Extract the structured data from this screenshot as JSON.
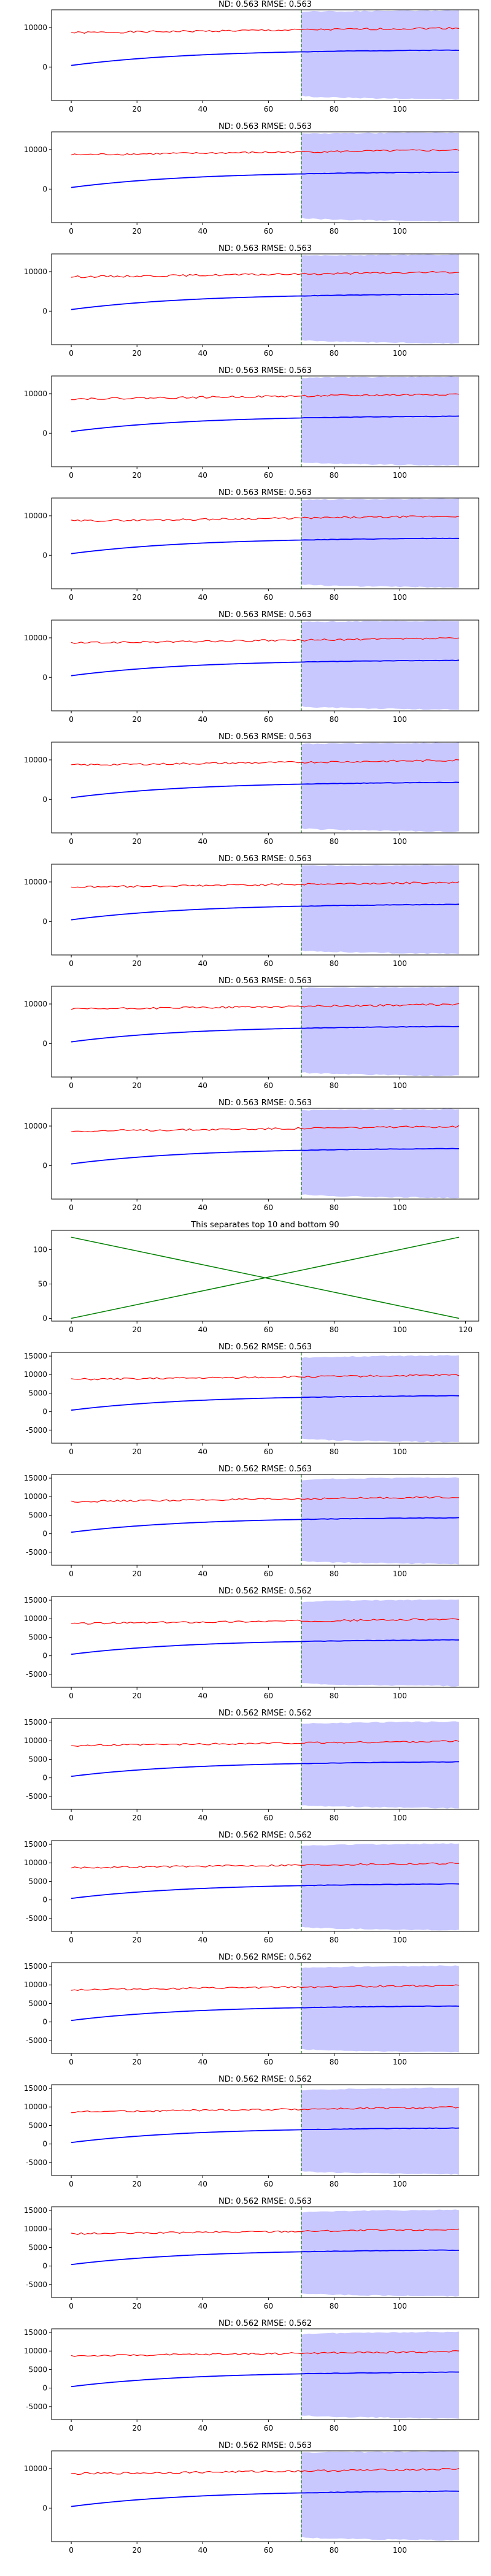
{
  "colors": {
    "actual": "#ff0000",
    "forecast": "#0000ff",
    "band": "#c8c8ff",
    "split_line": "#006400",
    "separator_lines": "#008000"
  },
  "chart_data": [
    {
      "type": "line",
      "title": "ND:  0.563 RMSE:  0.563",
      "x_ticks": [
        "0",
        "20",
        "40",
        "60",
        "80",
        "100"
      ],
      "y_ticks": [
        "0",
        "10000"
      ],
      "xlim": [
        -6,
        124
      ],
      "ylim": [
        -8500,
        14500
      ],
      "split_x": 70,
      "band": {
        "x": [
          70,
          118
        ],
        "lower_start": -7300,
        "lower_end": -8200,
        "upper_start": 14000,
        "upper_end": 14300
      },
      "series": [
        {
          "color": "red",
          "x_range": [
            0,
            118
          ],
          "start": 8700,
          "end": 9900
        },
        {
          "color": "blue",
          "x_range": [
            0,
            118
          ],
          "start": 400,
          "end": 4300
        }
      ]
    },
    {
      "type": "line",
      "title": "ND:  0.563 RMSE:  0.563",
      "x_ticks": [
        "0",
        "20",
        "40",
        "60",
        "80",
        "100"
      ],
      "y_ticks": [
        "0",
        "10000"
      ],
      "xlim": [
        -6,
        124
      ],
      "ylim": [
        -8500,
        14500
      ],
      "split_x": 70,
      "band": {
        "x": [
          70,
          118
        ],
        "lower_start": -7300,
        "lower_end": -8200,
        "upper_start": 14000,
        "upper_end": 14300
      },
      "series": [
        {
          "color": "red",
          "x_range": [
            0,
            118
          ],
          "start": 8700,
          "end": 9900
        },
        {
          "color": "blue",
          "x_range": [
            0,
            118
          ],
          "start": 400,
          "end": 4300
        }
      ]
    },
    {
      "type": "line",
      "title": "ND:  0.563 RMSE:  0.563",
      "x_ticks": [
        "0",
        "20",
        "40",
        "60",
        "80",
        "100"
      ],
      "y_ticks": [
        "0",
        "10000"
      ],
      "xlim": [
        -6,
        124
      ],
      "ylim": [
        -8500,
        14500
      ],
      "split_x": 70,
      "band": {
        "x": [
          70,
          118
        ],
        "lower_start": -7300,
        "lower_end": -8200,
        "upper_start": 14000,
        "upper_end": 14300
      },
      "series": [
        {
          "color": "red",
          "x_range": [
            0,
            118
          ],
          "start": 8700,
          "end": 9900
        },
        {
          "color": "blue",
          "x_range": [
            0,
            118
          ],
          "start": 400,
          "end": 4300
        }
      ]
    },
    {
      "type": "line",
      "title": "ND:  0.563 RMSE:  0.563",
      "x_ticks": [
        "0",
        "20",
        "40",
        "60",
        "80",
        "100"
      ],
      "y_ticks": [
        "0",
        "10000"
      ],
      "xlim": [
        -6,
        124
      ],
      "ylim": [
        -8500,
        14500
      ],
      "split_x": 70,
      "band": {
        "x": [
          70,
          118
        ],
        "lower_start": -7300,
        "lower_end": -8200,
        "upper_start": 14000,
        "upper_end": 14300
      },
      "series": [
        {
          "color": "red",
          "x_range": [
            0,
            118
          ],
          "start": 8700,
          "end": 9900
        },
        {
          "color": "blue",
          "x_range": [
            0,
            118
          ],
          "start": 400,
          "end": 4300
        }
      ]
    },
    {
      "type": "line",
      "title": "ND:  0.563 RMSE:  0.563",
      "x_ticks": [
        "0",
        "20",
        "40",
        "60",
        "80",
        "100"
      ],
      "y_ticks": [
        "0",
        "10000"
      ],
      "xlim": [
        -6,
        124
      ],
      "ylim": [
        -8500,
        14500
      ],
      "split_x": 70,
      "band": {
        "x": [
          70,
          118
        ],
        "lower_start": -7300,
        "lower_end": -8200,
        "upper_start": 14000,
        "upper_end": 14300
      },
      "series": [
        {
          "color": "red",
          "x_range": [
            0,
            118
          ],
          "start": 8700,
          "end": 9900
        },
        {
          "color": "blue",
          "x_range": [
            0,
            118
          ],
          "start": 400,
          "end": 4300
        }
      ]
    },
    {
      "type": "line",
      "title": "ND:  0.563 RMSE:  0.563",
      "x_ticks": [
        "0",
        "20",
        "40",
        "60",
        "80",
        "100"
      ],
      "y_ticks": [
        "0",
        "10000"
      ],
      "xlim": [
        -6,
        124
      ],
      "ylim": [
        -8500,
        14500
      ],
      "split_x": 70,
      "band": {
        "x": [
          70,
          118
        ],
        "lower_start": -7300,
        "lower_end": -8200,
        "upper_start": 14000,
        "upper_end": 14300
      },
      "series": [
        {
          "color": "red",
          "x_range": [
            0,
            118
          ],
          "start": 8700,
          "end": 9900
        },
        {
          "color": "blue",
          "x_range": [
            0,
            118
          ],
          "start": 400,
          "end": 4300
        }
      ]
    },
    {
      "type": "line",
      "title": "ND:  0.563 RMSE:  0.563",
      "x_ticks": [
        "0",
        "20",
        "40",
        "60",
        "80",
        "100"
      ],
      "y_ticks": [
        "0",
        "10000"
      ],
      "xlim": [
        -6,
        124
      ],
      "ylim": [
        -8500,
        14500
      ],
      "split_x": 70,
      "band": {
        "x": [
          70,
          118
        ],
        "lower_start": -7300,
        "lower_end": -8200,
        "upper_start": 14000,
        "upper_end": 14300
      },
      "series": [
        {
          "color": "red",
          "x_range": [
            0,
            118
          ],
          "start": 8700,
          "end": 9900
        },
        {
          "color": "blue",
          "x_range": [
            0,
            118
          ],
          "start": 400,
          "end": 4300
        }
      ]
    },
    {
      "type": "line",
      "title": "ND:  0.563 RMSE:  0.563",
      "x_ticks": [
        "0",
        "20",
        "40",
        "60",
        "80",
        "100"
      ],
      "y_ticks": [
        "0",
        "10000"
      ],
      "xlim": [
        -6,
        124
      ],
      "ylim": [
        -8500,
        14500
      ],
      "split_x": 70,
      "band": {
        "x": [
          70,
          118
        ],
        "lower_start": -7300,
        "lower_end": -8200,
        "upper_start": 14000,
        "upper_end": 14300
      },
      "series": [
        {
          "color": "red",
          "x_range": [
            0,
            118
          ],
          "start": 8700,
          "end": 9900
        },
        {
          "color": "blue",
          "x_range": [
            0,
            118
          ],
          "start": 400,
          "end": 4300
        }
      ]
    },
    {
      "type": "line",
      "title": "ND:  0.563 RMSE:  0.563",
      "x_ticks": [
        "0",
        "20",
        "40",
        "60",
        "80",
        "100"
      ],
      "y_ticks": [
        "0",
        "10000"
      ],
      "xlim": [
        -6,
        124
      ],
      "ylim": [
        -8500,
        14500
      ],
      "split_x": 70,
      "band": {
        "x": [
          70,
          118
        ],
        "lower_start": -7300,
        "lower_end": -8200,
        "upper_start": 14000,
        "upper_end": 14300
      },
      "series": [
        {
          "color": "red",
          "x_range": [
            0,
            118
          ],
          "start": 8700,
          "end": 9900
        },
        {
          "color": "blue",
          "x_range": [
            0,
            118
          ],
          "start": 400,
          "end": 4300
        }
      ]
    },
    {
      "type": "line",
      "title": "ND:  0.563 RMSE:  0.563",
      "x_ticks": [
        "0",
        "20",
        "40",
        "60",
        "80",
        "100"
      ],
      "y_ticks": [
        "0",
        "10000"
      ],
      "xlim": [
        -6,
        124
      ],
      "ylim": [
        -8500,
        14500
      ],
      "split_x": 70,
      "band": {
        "x": [
          70,
          118
        ],
        "lower_start": -7300,
        "lower_end": -8200,
        "upper_start": 14000,
        "upper_end": 14300
      },
      "series": [
        {
          "color": "red",
          "x_range": [
            0,
            118
          ],
          "start": 8700,
          "end": 9900
        },
        {
          "color": "blue",
          "x_range": [
            0,
            118
          ],
          "start": 400,
          "end": 4300
        }
      ]
    },
    {
      "type": "line",
      "title": "This separates top 10 and bottom 90",
      "x_ticks": [
        "0",
        "20",
        "40",
        "60",
        "80",
        "100",
        "120"
      ],
      "y_ticks": [
        "0",
        "50",
        "100"
      ],
      "xlim": [
        -6,
        124
      ],
      "ylim": [
        -4,
        128
      ],
      "series": [
        {
          "color": "green",
          "x": [
            0,
            118
          ],
          "y": [
            0,
            118
          ]
        },
        {
          "color": "green",
          "x": [
            0,
            118
          ],
          "y": [
            118,
            0
          ]
        }
      ]
    },
    {
      "type": "line",
      "title": "ND:  0.562 RMSE:  0.563",
      "x_ticks": [
        "0",
        "20",
        "40",
        "60",
        "80",
        "100"
      ],
      "y_ticks": [
        "-5000",
        "0",
        "5000",
        "10000",
        "15000"
      ],
      "xlim": [
        -6,
        124
      ],
      "ylim": [
        -8500,
        16000
      ],
      "split_x": 70,
      "band": {
        "x": [
          70,
          118
        ],
        "lower_start": -7300,
        "lower_end": -8200,
        "upper_start": 14500,
        "upper_end": 15200
      },
      "series": [
        {
          "color": "red",
          "x_range": [
            0,
            118
          ],
          "start": 8700,
          "end": 9900
        },
        {
          "color": "blue",
          "x_range": [
            0,
            118
          ],
          "start": 400,
          "end": 4300
        }
      ]
    },
    {
      "type": "line",
      "title": "ND:  0.562 RMSE:  0.563",
      "x_ticks": [
        "0",
        "20",
        "40",
        "60",
        "80",
        "100"
      ],
      "y_ticks": [
        "-5000",
        "0",
        "5000",
        "10000",
        "15000"
      ],
      "xlim": [
        -6,
        124
      ],
      "ylim": [
        -8500,
        16000
      ],
      "split_x": 70,
      "band": {
        "x": [
          70,
          118
        ],
        "lower_start": -7300,
        "lower_end": -8200,
        "upper_start": 14500,
        "upper_end": 15200
      },
      "series": [
        {
          "color": "red",
          "x_range": [
            0,
            118
          ],
          "start": 8700,
          "end": 9900
        },
        {
          "color": "blue",
          "x_range": [
            0,
            118
          ],
          "start": 400,
          "end": 4300
        }
      ]
    },
    {
      "type": "line",
      "title": "ND:  0.562 RMSE:  0.562",
      "x_ticks": [
        "0",
        "20",
        "40",
        "60",
        "80",
        "100"
      ],
      "y_ticks": [
        "-5000",
        "0",
        "5000",
        "10000",
        "15000"
      ],
      "xlim": [
        -6,
        124
      ],
      "ylim": [
        -8500,
        16000
      ],
      "split_x": 70,
      "band": {
        "x": [
          70,
          118
        ],
        "lower_start": -7300,
        "lower_end": -8200,
        "upper_start": 14500,
        "upper_end": 15200
      },
      "series": [
        {
          "color": "red",
          "x_range": [
            0,
            118
          ],
          "start": 8700,
          "end": 9900
        },
        {
          "color": "blue",
          "x_range": [
            0,
            118
          ],
          "start": 400,
          "end": 4300
        }
      ]
    },
    {
      "type": "line",
      "title": "ND:  0.562 RMSE:  0.562",
      "x_ticks": [
        "0",
        "20",
        "40",
        "60",
        "80",
        "100"
      ],
      "y_ticks": [
        "-5000",
        "0",
        "5000",
        "10000",
        "15000"
      ],
      "xlim": [
        -6,
        124
      ],
      "ylim": [
        -8500,
        16000
      ],
      "split_x": 70,
      "band": {
        "x": [
          70,
          118
        ],
        "lower_start": -7300,
        "lower_end": -8200,
        "upper_start": 14500,
        "upper_end": 15200
      },
      "series": [
        {
          "color": "red",
          "x_range": [
            0,
            118
          ],
          "start": 8700,
          "end": 9900
        },
        {
          "color": "blue",
          "x_range": [
            0,
            118
          ],
          "start": 400,
          "end": 4300
        }
      ]
    },
    {
      "type": "line",
      "title": "ND:  0.562 RMSE:  0.562",
      "x_ticks": [
        "0",
        "20",
        "40",
        "60",
        "80",
        "100"
      ],
      "y_ticks": [
        "-5000",
        "0",
        "5000",
        "10000",
        "15000"
      ],
      "xlim": [
        -6,
        124
      ],
      "ylim": [
        -8500,
        16000
      ],
      "split_x": 70,
      "band": {
        "x": [
          70,
          118
        ],
        "lower_start": -7300,
        "lower_end": -8200,
        "upper_start": 14500,
        "upper_end": 15200
      },
      "series": [
        {
          "color": "red",
          "x_range": [
            0,
            118
          ],
          "start": 8700,
          "end": 9900
        },
        {
          "color": "blue",
          "x_range": [
            0,
            118
          ],
          "start": 400,
          "end": 4300
        }
      ]
    },
    {
      "type": "line",
      "title": "ND:  0.562 RMSE:  0.562",
      "x_ticks": [
        "0",
        "20",
        "40",
        "60",
        "80",
        "100"
      ],
      "y_ticks": [
        "-5000",
        "0",
        "5000",
        "10000",
        "15000"
      ],
      "xlim": [
        -6,
        124
      ],
      "ylim": [
        -8500,
        16000
      ],
      "split_x": 70,
      "band": {
        "x": [
          70,
          118
        ],
        "lower_start": -7300,
        "lower_end": -8200,
        "upper_start": 14500,
        "upper_end": 15200
      },
      "series": [
        {
          "color": "red",
          "x_range": [
            0,
            118
          ],
          "start": 8700,
          "end": 9900
        },
        {
          "color": "blue",
          "x_range": [
            0,
            118
          ],
          "start": 400,
          "end": 4300
        }
      ]
    },
    {
      "type": "line",
      "title": "ND:  0.562 RMSE:  0.562",
      "x_ticks": [
        "0",
        "20",
        "40",
        "60",
        "80",
        "100"
      ],
      "y_ticks": [
        "-5000",
        "0",
        "5000",
        "10000",
        "15000"
      ],
      "xlim": [
        -6,
        124
      ],
      "ylim": [
        -8500,
        16000
      ],
      "split_x": 70,
      "band": {
        "x": [
          70,
          118
        ],
        "lower_start": -7300,
        "lower_end": -8200,
        "upper_start": 14500,
        "upper_end": 15200
      },
      "series": [
        {
          "color": "red",
          "x_range": [
            0,
            118
          ],
          "start": 8700,
          "end": 9900
        },
        {
          "color": "blue",
          "x_range": [
            0,
            118
          ],
          "start": 400,
          "end": 4300
        }
      ]
    },
    {
      "type": "line",
      "title": "ND:  0.562 RMSE:  0.563",
      "x_ticks": [
        "0",
        "20",
        "40",
        "60",
        "80",
        "100"
      ],
      "y_ticks": [
        "-5000",
        "0",
        "5000",
        "10000",
        "15000"
      ],
      "xlim": [
        -6,
        124
      ],
      "ylim": [
        -8500,
        16000
      ],
      "split_x": 70,
      "band": {
        "x": [
          70,
          118
        ],
        "lower_start": -7300,
        "lower_end": -8200,
        "upper_start": 14500,
        "upper_end": 15200
      },
      "series": [
        {
          "color": "red",
          "x_range": [
            0,
            118
          ],
          "start": 8700,
          "end": 9900
        },
        {
          "color": "blue",
          "x_range": [
            0,
            118
          ],
          "start": 400,
          "end": 4300
        }
      ]
    },
    {
      "type": "line",
      "title": "ND:  0.562 RMSE:  0.562",
      "x_ticks": [
        "0",
        "20",
        "40",
        "60",
        "80",
        "100"
      ],
      "y_ticks": [
        "-5000",
        "0",
        "5000",
        "10000",
        "15000"
      ],
      "xlim": [
        -6,
        124
      ],
      "ylim": [
        -8500,
        16000
      ],
      "split_x": 70,
      "band": {
        "x": [
          70,
          118
        ],
        "lower_start": -7300,
        "lower_end": -8200,
        "upper_start": 14500,
        "upper_end": 15200
      },
      "series": [
        {
          "color": "red",
          "x_range": [
            0,
            118
          ],
          "start": 8700,
          "end": 9900
        },
        {
          "color": "blue",
          "x_range": [
            0,
            118
          ],
          "start": 400,
          "end": 4300
        }
      ]
    },
    {
      "type": "line",
      "title": "ND:  0.562 RMSE:  0.563",
      "x_ticks": [
        "0",
        "20",
        "40",
        "60",
        "80",
        "100"
      ],
      "y_ticks": [
        "0",
        "10000"
      ],
      "xlim": [
        -6,
        124
      ],
      "ylim": [
        -8500,
        14500
      ],
      "split_x": 70,
      "band": {
        "x": [
          70,
          118
        ],
        "lower_start": -7300,
        "lower_end": -8200,
        "upper_start": 14000,
        "upper_end": 14300
      },
      "series": [
        {
          "color": "red",
          "x_range": [
            0,
            118
          ],
          "start": 8700,
          "end": 9900
        },
        {
          "color": "blue",
          "x_range": [
            0,
            118
          ],
          "start": 400,
          "end": 4300
        }
      ]
    }
  ]
}
